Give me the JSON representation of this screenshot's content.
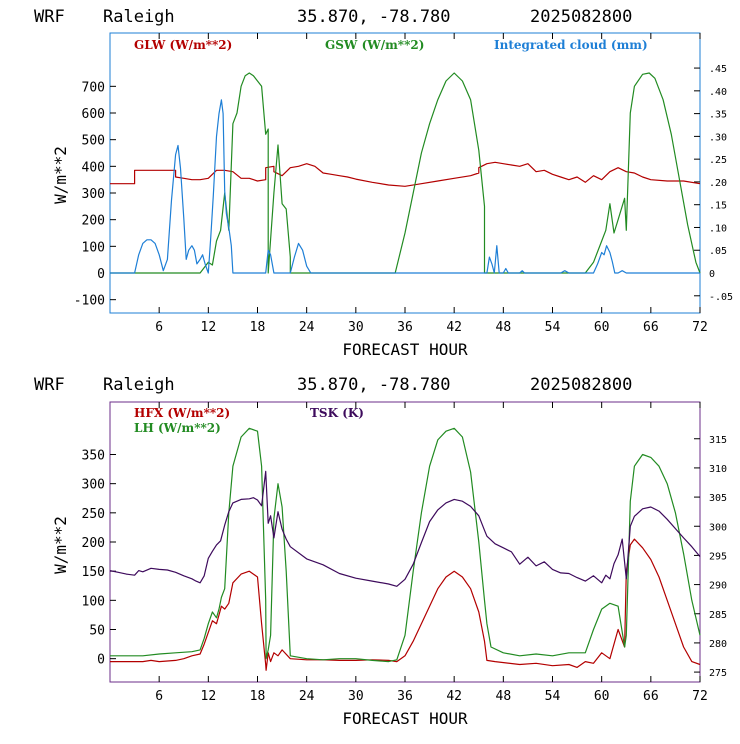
{
  "chart_data": [
    {
      "type": "line",
      "header": {
        "model": "WRF",
        "location": "Raleigh",
        "coords": "35.870, -78.780",
        "date": "2025082800"
      },
      "ylabel": "W/m**2",
      "xlabel": "FORECAST HOUR",
      "xlim": [
        0,
        72
      ],
      "ylim": [
        -150,
        900
      ],
      "x_ticks": [
        6,
        12,
        18,
        24,
        30,
        36,
        42,
        48,
        54,
        60,
        66,
        72
      ],
      "y_ticks": [
        -100,
        0,
        100,
        200,
        300,
        400,
        500,
        600,
        700
      ],
      "y2lim": [
        -0.0878,
        0.527
      ],
      "y2_ticks": [
        -0.05,
        0,
        0.05,
        0.1,
        0.15,
        0.2,
        0.25,
        0.3,
        0.35,
        0.4,
        0.45
      ],
      "y2_tick_labels": [
        "-.05",
        "0",
        ".05",
        ".10",
        ".15",
        ".20",
        ".25",
        ".30",
        ".35",
        ".40",
        ".45"
      ],
      "frame_color": "#1e7fd6",
      "series": [
        {
          "name": "GLW (W/m**2)",
          "color": "#b30000",
          "axis": "left",
          "x": [
            0,
            3,
            3,
            8,
            8,
            9,
            10,
            11,
            12,
            13,
            14,
            15,
            16,
            17,
            18,
            19,
            19,
            20,
            20,
            21,
            22,
            23,
            24,
            25,
            26,
            27,
            28,
            29,
            30,
            32,
            34,
            36,
            38,
            40,
            42,
            44,
            45,
            45,
            46,
            47,
            48,
            49,
            50,
            51,
            52,
            53,
            54,
            55,
            56,
            57,
            58,
            59,
            60,
            61,
            62,
            63,
            64,
            65,
            66,
            68,
            70,
            72
          ],
          "y": [
            335,
            335,
            385,
            385,
            360,
            355,
            350,
            350,
            355,
            385,
            385,
            380,
            355,
            355,
            345,
            350,
            395,
            400,
            380,
            365,
            395,
            400,
            410,
            400,
            375,
            370,
            365,
            360,
            352,
            340,
            330,
            325,
            335,
            345,
            355,
            365,
            375,
            395,
            410,
            415,
            410,
            405,
            400,
            410,
            380,
            385,
            370,
            360,
            350,
            360,
            340,
            365,
            350,
            380,
            395,
            380,
            375,
            360,
            350,
            345,
            345,
            335
          ]
        },
        {
          "name": "GSW (W/m**2)",
          "color": "#228b22",
          "axis": "left",
          "x": [
            0,
            11,
            12,
            12.5,
            13,
            13.5,
            14,
            14.5,
            15,
            15.5,
            16,
            16.5,
            17,
            17.5,
            18,
            18.5,
            19,
            19.3,
            19.3,
            20,
            20.5,
            21,
            21.5,
            22,
            22,
            23,
            34.8,
            36,
            37,
            38,
            39,
            40,
            41,
            42,
            43,
            44,
            45,
            45.7,
            45.7,
            46,
            58,
            59,
            60,
            60.5,
            61,
            61.5,
            62,
            62.8,
            63,
            63.5,
            64,
            65,
            65.8,
            66.5,
            67.5,
            68.5,
            69.5,
            70.5,
            71.5,
            72
          ],
          "y": [
            0,
            0,
            40,
            30,
            120,
            160,
            300,
            160,
            560,
            600,
            700,
            740,
            750,
            740,
            720,
            700,
            520,
            540,
            0,
            300,
            480,
            260,
            240,
            60,
            0,
            0,
            0,
            150,
            300,
            450,
            560,
            650,
            720,
            750,
            720,
            650,
            460,
            250,
            0,
            0,
            0,
            40,
            120,
            160,
            260,
            150,
            200,
            280,
            160,
            600,
            700,
            745,
            750,
            730,
            650,
            520,
            350,
            180,
            40,
            0
          ]
        },
        {
          "name": "Integrated cloud (mm)",
          "color": "#1e7fd6",
          "axis": "right",
          "x": [
            0,
            3,
            3.5,
            4,
            4.5,
            5,
            5.5,
            6,
            6.5,
            7,
            7.5,
            8,
            8.3,
            8.6,
            9,
            9.3,
            9.6,
            10,
            10.3,
            10.6,
            11,
            11.3,
            11.6,
            12,
            12.3,
            12.6,
            13,
            13.3,
            13.6,
            13.8,
            14,
            14.2,
            14.5,
            14.8,
            15,
            15.3,
            15.6,
            16,
            18,
            19,
            19.3,
            19.6,
            20,
            22,
            22.5,
            23,
            23.5,
            24,
            24.5,
            25,
            46,
            46.3,
            46.6,
            46.9,
            47.2,
            47.5,
            48,
            48.3,
            48.6,
            49,
            50,
            50.3,
            50.6,
            51,
            55,
            55.5,
            56,
            57,
            58,
            59,
            59.5,
            60,
            60.3,
            60.6,
            61,
            61.3,
            61.6,
            62,
            62.5,
            63,
            72
          ],
          "y": [
            0,
            0,
            0.04,
            0.065,
            0.073,
            0.073,
            0.065,
            0.04,
            0.005,
            0.03,
            0.16,
            0.26,
            0.28,
            0.23,
            0.12,
            0.03,
            0.05,
            0.06,
            0.05,
            0.02,
            0.03,
            0.04,
            0.02,
            0.0,
            0.08,
            0.17,
            0.3,
            0.35,
            0.38,
            0.35,
            0.18,
            0.13,
            0.1,
            0.06,
            0.0,
            0.0,
            0.0,
            0.0,
            0.0,
            0.0,
            0.05,
            0.04,
            0.0,
            0.0,
            0.035,
            0.065,
            0.05,
            0.015,
            0.0,
            0.0,
            0.0,
            0.035,
            0.02,
            0.0,
            0.06,
            0.0,
            0.0,
            0.01,
            0.0,
            0.0,
            0.0,
            0.005,
            0.0,
            0.0,
            0.0,
            0.005,
            0.0,
            0.0,
            0.0,
            0.0,
            0.02,
            0.045,
            0.04,
            0.06,
            0.045,
            0.025,
            0.0,
            0.0,
            0.005,
            0.0,
            0.0
          ]
        }
      ]
    },
    {
      "type": "line",
      "header": {
        "model": "WRF",
        "location": "Raleigh",
        "coords": "35.870, -78.780",
        "date": "2025082800"
      },
      "ylabel": "W/m**2",
      "xlabel": "FORECAST HOUR",
      "xlim": [
        0,
        72
      ],
      "ylim": [
        -40,
        440
      ],
      "x_ticks": [
        6,
        12,
        18,
        24,
        30,
        36,
        42,
        48,
        54,
        60,
        66,
        72
      ],
      "y_ticks": [
        0,
        50,
        100,
        150,
        200,
        250,
        300,
        350
      ],
      "y2lim": [
        273.3,
        321.3
      ],
      "y2_ticks": [
        275,
        280,
        285,
        290,
        295,
        300,
        305,
        310,
        315
      ],
      "frame_color": "#6b2d8a",
      "series": [
        {
          "name": "HFX (W/m**2)",
          "color": "#b30000",
          "axis": "left",
          "x": [
            0,
            4,
            5,
            6,
            8,
            9,
            10,
            11,
            11.5,
            12,
            12.5,
            13,
            13.3,
            13.6,
            14,
            14.5,
            15,
            16,
            17,
            18,
            18.5,
            19,
            19.05,
            19.3,
            19.6,
            20,
            20.5,
            21,
            22,
            24,
            26,
            28,
            30,
            32,
            34,
            35,
            36,
            37,
            38,
            39,
            40,
            41,
            42,
            43,
            44,
            45,
            45.7,
            46,
            47,
            50,
            52,
            54,
            56,
            57,
            58,
            59,
            60,
            61,
            62,
            62.8,
            63,
            63.5,
            64,
            65,
            66,
            67,
            68,
            69,
            70,
            71,
            72
          ],
          "y": [
            -5,
            -5,
            -3,
            -5,
            -3,
            0,
            5,
            8,
            25,
            45,
            65,
            60,
            75,
            90,
            85,
            95,
            130,
            145,
            150,
            140,
            60,
            -10,
            -20,
            10,
            -5,
            10,
            5,
            15,
            0,
            -2,
            -2,
            -3,
            -3,
            -2,
            -3,
            -5,
            5,
            30,
            60,
            90,
            120,
            140,
            150,
            140,
            120,
            80,
            30,
            -3,
            -5,
            -10,
            -8,
            -12,
            -10,
            -15,
            -5,
            -8,
            10,
            0,
            50,
            20,
            150,
            195,
            205,
            190,
            170,
            140,
            100,
            60,
            20,
            -5,
            -10
          ]
        },
        {
          "name": "LH (W/m**2)",
          "color": "#228b22",
          "axis": "left",
          "x": [
            0,
            4,
            6,
            8,
            10,
            11,
            11.5,
            12,
            12.5,
            13,
            13.3,
            13.6,
            14,
            14.5,
            15,
            16,
            17,
            18,
            18.5,
            19,
            19.05,
            19.3,
            19.6,
            20,
            20.5,
            21,
            21.5,
            22,
            24,
            26,
            28,
            30,
            32,
            34,
            35,
            36,
            37,
            38,
            39,
            40,
            41,
            42,
            43,
            44,
            45,
            45.7,
            46,
            46.5,
            48,
            50,
            52,
            54,
            56,
            58,
            59,
            60,
            61,
            62,
            62.8,
            63,
            63.5,
            64,
            65,
            66,
            67,
            68,
            69,
            70,
            71,
            72
          ],
          "y": [
            5,
            5,
            8,
            10,
            12,
            15,
            35,
            60,
            80,
            70,
            85,
            105,
            120,
            250,
            330,
            380,
            395,
            390,
            330,
            100,
            0,
            15,
            40,
            240,
            300,
            260,
            150,
            5,
            0,
            -2,
            0,
            0,
            -3,
            -5,
            -2,
            40,
            150,
            250,
            330,
            375,
            390,
            395,
            380,
            320,
            200,
            100,
            60,
            20,
            10,
            5,
            8,
            5,
            10,
            10,
            50,
            85,
            95,
            90,
            20,
            40,
            270,
            330,
            350,
            345,
            330,
            300,
            250,
            180,
            100,
            40
          ]
        },
        {
          "name": "TSK (K)",
          "color": "#3d0a5c",
          "axis": "right",
          "x": [
            0,
            1,
            2,
            3,
            3.5,
            4,
            5,
            6,
            7,
            8,
            9,
            10,
            10.5,
            11,
            11.5,
            12,
            12.5,
            13,
            13.5,
            14,
            14.5,
            15,
            16,
            17,
            17.5,
            18,
            18.5,
            19,
            19.3,
            19.6,
            20,
            20.5,
            21,
            21.5,
            22,
            24,
            26,
            28,
            30,
            32,
            34,
            35,
            36,
            37,
            38,
            39,
            40,
            41,
            42,
            43,
            44,
            45,
            45.7,
            46,
            47,
            48,
            49,
            50,
            51,
            52,
            53,
            54,
            55,
            56,
            57,
            58,
            59,
            60,
            60.5,
            61,
            61.5,
            62,
            62.5,
            63,
            63.5,
            64,
            65,
            66,
            67,
            68,
            69,
            70,
            71,
            72
          ],
          "y": [
            292.4,
            292.1,
            291.8,
            291.6,
            292.4,
            292.2,
            292.8,
            292.6,
            292.5,
            292.1,
            291.5,
            291.0,
            290.6,
            290.3,
            291.5,
            294.5,
            295.7,
            296.8,
            297.5,
            300.2,
            302.5,
            304.0,
            304.6,
            304.7,
            304.9,
            304.5,
            303.5,
            309.4,
            300.5,
            301.8,
            298.0,
            302.5,
            299.5,
            297.8,
            296.5,
            294.4,
            293.4,
            291.9,
            291.1,
            290.6,
            290.1,
            289.7,
            290.9,
            293.5,
            297.2,
            300.8,
            302.8,
            304.0,
            304.6,
            304.3,
            303.4,
            301.8,
            299.3,
            298.3,
            297.0,
            296.3,
            295.6,
            293.5,
            294.7,
            293.2,
            293.9,
            292.6,
            292.0,
            291.9,
            291.2,
            290.6,
            291.5,
            290.3,
            291.6,
            291.0,
            293.6,
            295.1,
            297.8,
            291.0,
            300.0,
            301.7,
            303.0,
            303.3,
            302.6,
            301.2,
            299.6,
            298.0,
            296.5,
            294.8
          ]
        }
      ]
    }
  ]
}
